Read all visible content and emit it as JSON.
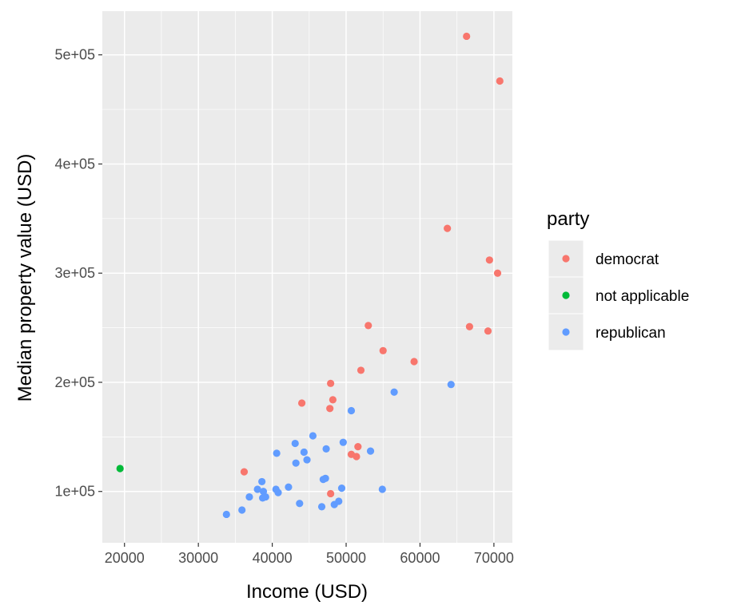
{
  "chart_data": {
    "type": "scatter",
    "xlabel": "Income (USD)",
    "ylabel": "Median property value (USD)",
    "xlim": [
      17000,
      72500
    ],
    "ylim": [
      53000,
      540000
    ],
    "x_ticks": [
      20000,
      30000,
      40000,
      50000,
      60000,
      70000
    ],
    "x_tick_labels": [
      "20000",
      "30000",
      "40000",
      "50000",
      "60000",
      "70000"
    ],
    "y_ticks": [
      100000,
      200000,
      300000,
      400000,
      500000
    ],
    "y_tick_labels": [
      "1e+05",
      "2e+05",
      "3e+05",
      "4e+05",
      "5e+05"
    ],
    "grid": true,
    "panel_background": "#ebebeb",
    "legend": {
      "title": "party",
      "position": "right",
      "entries": [
        {
          "label": "democrat",
          "color": "#F8766D"
        },
        {
          "label": "not applicable",
          "color": "#00BA38"
        },
        {
          "label": "republican",
          "color": "#619CFF"
        }
      ]
    },
    "series": [
      {
        "color": "#F8766D",
        "points": [
          [
            66300,
            517000
          ],
          [
            70800,
            476000
          ],
          [
            63700,
            341000
          ],
          [
            69400,
            312000
          ],
          [
            70500,
            300000
          ],
          [
            66700,
            251000
          ],
          [
            69200,
            247000
          ],
          [
            53000,
            252000
          ],
          [
            55000,
            229000
          ],
          [
            59200,
            219000
          ],
          [
            52000,
            211000
          ],
          [
            47900,
            199000
          ],
          [
            48200,
            184000
          ],
          [
            44000,
            181000
          ],
          [
            47800,
            176000
          ],
          [
            51600,
            141000
          ],
          [
            50700,
            134000
          ],
          [
            51400,
            132000
          ],
          [
            36200,
            118000
          ],
          [
            47900,
            98000
          ]
        ]
      },
      {
        "color": "#00BA38",
        "points": [
          [
            19400,
            121000
          ]
        ]
      },
      {
        "color": "#619CFF",
        "points": [
          [
            64200,
            198000
          ],
          [
            56500,
            191000
          ],
          [
            50700,
            174000
          ],
          [
            45500,
            151000
          ],
          [
            49600,
            145000
          ],
          [
            43100,
            144000
          ],
          [
            47300,
            139000
          ],
          [
            53300,
            137000
          ],
          [
            44300,
            136000
          ],
          [
            40600,
            135000
          ],
          [
            44700,
            129000
          ],
          [
            43200,
            126000
          ],
          [
            47200,
            112000
          ],
          [
            46900,
            111000
          ],
          [
            38600,
            109000
          ],
          [
            42200,
            104000
          ],
          [
            49400,
            103000
          ],
          [
            40500,
            102000
          ],
          [
            38000,
            102000
          ],
          [
            54900,
            102000
          ],
          [
            38800,
            100000
          ],
          [
            40800,
            99000
          ],
          [
            36900,
            95000
          ],
          [
            38700,
            94000
          ],
          [
            39100,
            95000
          ],
          [
            49000,
            91000
          ],
          [
            43700,
            89000
          ],
          [
            48400,
            88000
          ],
          [
            46700,
            86000
          ],
          [
            35900,
            83000
          ],
          [
            33800,
            79000
          ]
        ]
      }
    ]
  }
}
